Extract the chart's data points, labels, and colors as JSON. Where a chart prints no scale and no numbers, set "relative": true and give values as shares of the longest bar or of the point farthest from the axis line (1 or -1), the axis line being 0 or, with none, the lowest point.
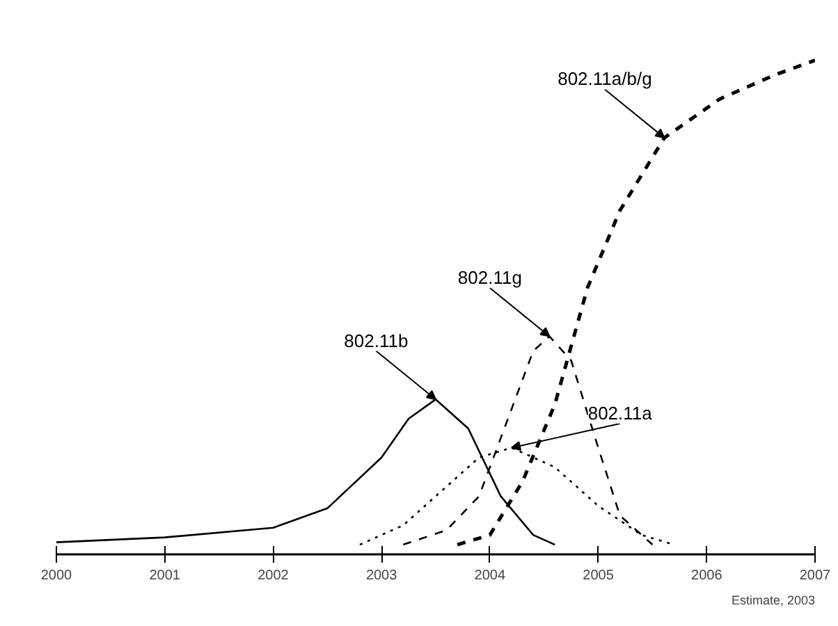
{
  "chart_data": {
    "type": "line",
    "relative": true,
    "xlim": [
      2000,
      2007
    ],
    "xticks": [
      2000,
      2001,
      2002,
      2003,
      2004,
      2005,
      2006,
      2007
    ],
    "grid": false,
    "tick_labels": "x",
    "series": [
      {
        "name": "802.11b",
        "color": "#000000",
        "line_style": "solid",
        "x": [
          2000,
          2001,
          2002,
          2002.5,
          2003,
          2003.25,
          2003.5,
          2003.8,
          2004.1,
          2004.4,
          2004.6
        ],
        "values": [
          0.005,
          0.015,
          0.035,
          0.075,
          0.18,
          0.26,
          0.3,
          0.24,
          0.1,
          0.02,
          0
        ]
      },
      {
        "name": "802.11g",
        "color": "#000000",
        "line_style": "dashed",
        "x": [
          2003.2,
          2003.6,
          2003.9,
          2004.2,
          2004.4,
          2004.55,
          2004.75,
          2005.0,
          2005.2,
          2005.5
        ],
        "values": [
          0,
          0.03,
          0.1,
          0.28,
          0.4,
          0.43,
          0.38,
          0.2,
          0.06,
          0
        ]
      },
      {
        "name": "802.11a",
        "color": "#000000",
        "line_style": "dotted",
        "x": [
          2002.8,
          2003.2,
          2003.6,
          2003.9,
          2004.2,
          2004.6,
          2005.0,
          2005.4,
          2005.7
        ],
        "values": [
          0,
          0.04,
          0.12,
          0.18,
          0.2,
          0.16,
          0.08,
          0.02,
          0
        ]
      },
      {
        "name": "802.11a/b/g",
        "color": "#000000",
        "line_style": "dashed",
        "x": [
          2003.7,
          2004.0,
          2004.3,
          2004.6,
          2004.9,
          2005.2,
          2005.61,
          2006.12,
          2006.63,
          2007
        ],
        "values": [
          0,
          0.02,
          0.13,
          0.29,
          0.53,
          0.69,
          0.84,
          0.92,
          0.97,
          1.0
        ]
      }
    ],
    "annotations": [
      "Estimate, 2003"
    ]
  }
}
